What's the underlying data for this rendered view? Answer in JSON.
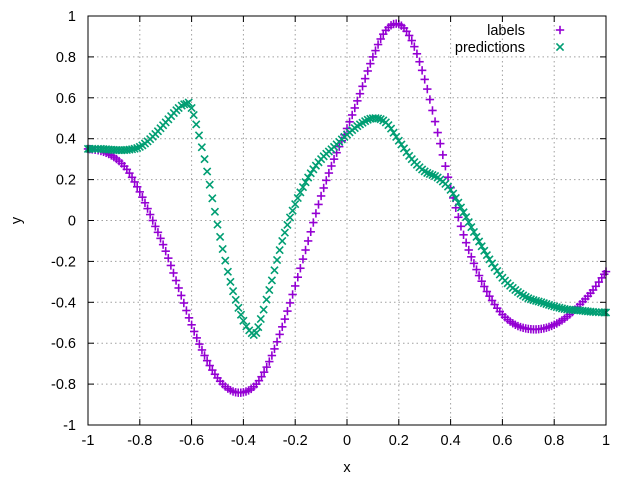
{
  "chart_data": {
    "type": "scatter",
    "title": "",
    "xlabel": "x",
    "ylabel": "y",
    "xlim": [
      -1,
      1
    ],
    "ylim": [
      -1,
      1
    ],
    "xticks": [
      -1,
      -0.8,
      -0.6,
      -0.4,
      -0.2,
      0,
      0.2,
      0.4,
      0.6,
      0.8,
      1
    ],
    "yticks": [
      -1,
      -0.8,
      -0.6,
      -0.4,
      -0.2,
      0,
      0.2,
      0.4,
      0.6,
      0.8,
      1
    ],
    "xtick_labels": [
      "-1",
      "-0.8",
      "-0.6",
      "-0.4",
      "-0.2",
      "0",
      "0.2",
      "0.4",
      "0.6",
      "0.8",
      "1"
    ],
    "ytick_labels": [
      "-1",
      "-0.8",
      "-0.6",
      "-0.4",
      "-0.2",
      "0",
      "0.2",
      "0.4",
      "0.6",
      "0.8",
      "1"
    ],
    "grid": true,
    "legend_position": "top-right",
    "series": [
      {
        "name": "labels",
        "marker": "plus",
        "color": "#9400d3",
        "x": [
          -1,
          -0.95,
          -0.9,
          -0.85,
          -0.8,
          -0.75,
          -0.7,
          -0.65,
          -0.6,
          -0.55,
          -0.5,
          -0.45,
          -0.4,
          -0.35,
          -0.3,
          -0.25,
          -0.2,
          -0.15,
          -0.1,
          -0.05,
          0,
          0.05,
          0.1,
          0.15,
          0.2,
          0.25,
          0.3,
          0.35,
          0.4,
          0.45,
          0.5,
          0.55,
          0.6,
          0.65,
          0.7,
          0.75,
          0.8,
          0.85,
          0.9,
          0.95,
          1
        ],
        "y": [
          0.35,
          0.34,
          0.31,
          0.25,
          0.14,
          0.0,
          -0.15,
          -0.33,
          -0.51,
          -0.66,
          -0.77,
          -0.83,
          -0.84,
          -0.8,
          -0.69,
          -0.52,
          -0.32,
          -0.1,
          0.12,
          0.3,
          0.45,
          0.62,
          0.8,
          0.93,
          0.96,
          0.88,
          0.69,
          0.43,
          0.16,
          -0.07,
          -0.24,
          -0.37,
          -0.46,
          -0.51,
          -0.53,
          -0.53,
          -0.51,
          -0.47,
          -0.41,
          -0.34,
          -0.25
        ]
      },
      {
        "name": "predictions",
        "marker": "cross",
        "color": "#009e73",
        "x": [
          -1,
          -0.95,
          -0.9,
          -0.85,
          -0.8,
          -0.75,
          -0.7,
          -0.65,
          -0.62,
          -0.6,
          -0.55,
          -0.5,
          -0.45,
          -0.4,
          -0.36,
          -0.35,
          -0.3,
          -0.25,
          -0.2,
          -0.15,
          -0.1,
          -0.05,
          0,
          0.05,
          0.1,
          0.15,
          0.2,
          0.25,
          0.3,
          0.35,
          0.4,
          0.45,
          0.5,
          0.55,
          0.6,
          0.65,
          0.7,
          0.75,
          0.8,
          0.85,
          0.9,
          0.95,
          1
        ],
        "y": [
          0.35,
          0.35,
          0.345,
          0.345,
          0.36,
          0.41,
          0.48,
          0.55,
          0.57,
          0.55,
          0.3,
          -0.02,
          -0.3,
          -0.49,
          -0.56,
          -0.55,
          -0.34,
          -0.1,
          0.08,
          0.21,
          0.3,
          0.36,
          0.42,
          0.47,
          0.5,
          0.48,
          0.39,
          0.3,
          0.24,
          0.21,
          0.15,
          0.04,
          -0.08,
          -0.19,
          -0.28,
          -0.34,
          -0.38,
          -0.4,
          -0.42,
          -0.435,
          -0.44,
          -0.447,
          -0.45
        ]
      }
    ]
  }
}
